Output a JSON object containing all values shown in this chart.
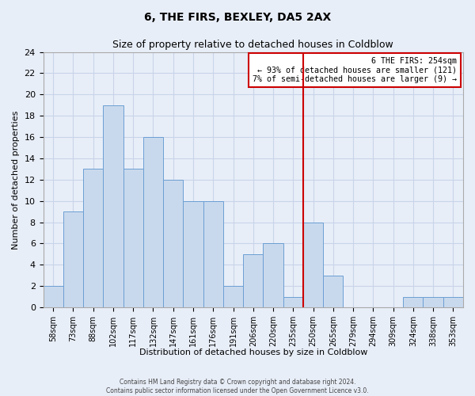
{
  "title": "6, THE FIRS, BEXLEY, DA5 2AX",
  "subtitle": "Size of property relative to detached houses in Coldblow",
  "xlabel": "Distribution of detached houses by size in Coldblow",
  "ylabel": "Number of detached properties",
  "bin_labels": [
    "58sqm",
    "73sqm",
    "88sqm",
    "102sqm",
    "117sqm",
    "132sqm",
    "147sqm",
    "161sqm",
    "176sqm",
    "191sqm",
    "206sqm",
    "220sqm",
    "235sqm",
    "250sqm",
    "265sqm",
    "279sqm",
    "294sqm",
    "309sqm",
    "324sqm",
    "338sqm",
    "353sqm"
  ],
  "bar_values": [
    2,
    9,
    13,
    19,
    13,
    16,
    12,
    10,
    10,
    2,
    5,
    6,
    1,
    8,
    3,
    0,
    0,
    0,
    1,
    1,
    1
  ],
  "bar_color": "#c9d9ed",
  "bar_edgecolor": "#6b9fd4",
  "grid_color": "#c8d4e8",
  "background_color": "#e8eef8",
  "vline_color": "#cc0000",
  "annotation_text": "6 THE FIRS: 254sqm\n← 93% of detached houses are smaller (121)\n7% of semi-detached houses are larger (9) →",
  "annotation_box_edgecolor": "#cc0000",
  "annotation_box_facecolor": "#ffffff",
  "footer_line1": "Contains HM Land Registry data © Crown copyright and database right 2024.",
  "footer_line2": "Contains public sector information licensed under the Open Government Licence v3.0.",
  "ylim": [
    0,
    24
  ],
  "yticks": [
    0,
    2,
    4,
    6,
    8,
    10,
    12,
    14,
    16,
    18,
    20,
    22,
    24
  ],
  "bin_edges": [
    58,
    73,
    88,
    102,
    117,
    132,
    147,
    161,
    176,
    191,
    206,
    220,
    235,
    250,
    265,
    279,
    294,
    309,
    324,
    338,
    353,
    368
  ],
  "vline_x_idx": 13
}
